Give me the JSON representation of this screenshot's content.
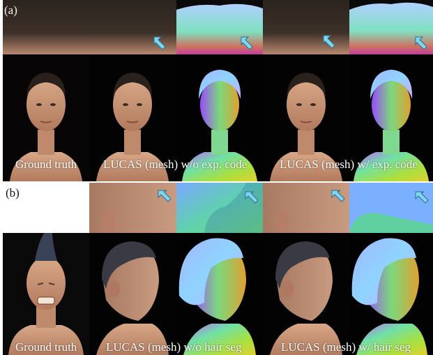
{
  "panel_a": {
    "label": "(a)",
    "captions": {
      "ground_truth": "Ground truth",
      "variant_1": "LUCAS (mesh) w/o exp. code",
      "variant_2": "LUCAS (mesh) w/ exp. code"
    }
  },
  "panel_b": {
    "label": "(b)",
    "captions": {
      "ground_truth": "Ground truth",
      "variant_1": "LUCAS (mesh) w/o hair seg",
      "variant_2": "LUCAS (mesh) w/ hair seg"
    }
  },
  "colors": {
    "arrow_fill": "#7fd6f2",
    "arrow_stroke": "#2f6f86",
    "skin": "#c99678",
    "hair": "#2a211c"
  },
  "icons": {
    "arrow": "pointer-arrow-icon"
  }
}
